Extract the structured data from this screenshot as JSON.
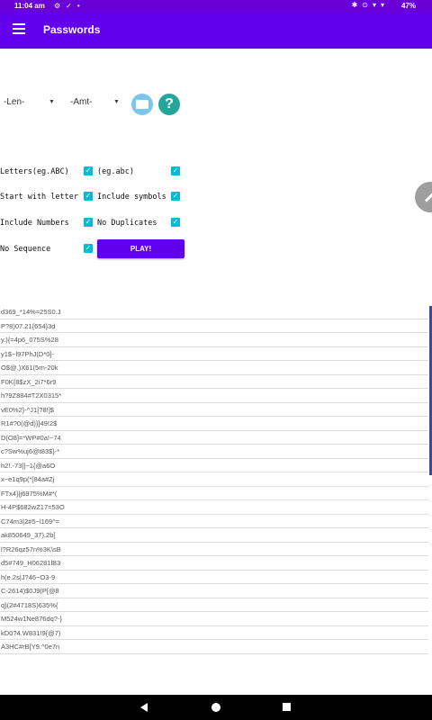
{
  "status_bar": {
    "time": "11:04 am",
    "battery": "47%"
  },
  "app_bar": {
    "title": "Passwords"
  },
  "controls": {
    "len_label": "-Len-",
    "amt_label": "-Amt-"
  },
  "options": [
    {
      "label": "Letters(eg.ABC)",
      "checked": true
    },
    {
      "label": "(eg.abc)",
      "checked": true
    },
    {
      "label": "Start with letter",
      "checked": true
    },
    {
      "label": "Include symbols",
      "checked": true
    },
    {
      "label": "Include Numbers",
      "checked": true
    },
    {
      "label": "No Duplicates",
      "checked": true
    },
    {
      "label": "No Sequence",
      "checked": true
    }
  ],
  "play_label": "PLAY!",
  "passwords": [
    "d369_*14%=25S0.J",
    "P?8)07.21{654}3d",
    "y.){=4p6_075S%28",
    "y1$~l97PhJ(D*0]-",
    "O$@.)X61(5rn-20k",
    "F0K{8$zX_2i7*6r9",
    "h?9Z884#T2X0315*",
    "vE0%2}-^J1[?8!]$",
    "R1#?0(@d)}]49!2$",
    "D(O8]=*WP#0a!~74",
    "c?Sw%uj6@t83$}-*",
    "h2!.-73[|~1{@a6O",
    "x~e1q9p(*[84a#Zj",
    "FTx4}|j6975%M#*(",
    "H-4P$682wZ17=53O",
    "C74m3|2#5~l169^=",
    "ak850649_37).2b[",
    "l?R26qz57n%3K\\sB",
    "d5#749_H06281lB3",
    "h(e.2s|J?46~O3-9",
    "C-2614)$0J9(P[@8",
    "q}(2#4718S)635%{",
    "M524w1Ne876dq?-}",
    "kD0?4.W831!9{@7)",
    "A3HC#rB[Y9.^0e7n"
  ]
}
